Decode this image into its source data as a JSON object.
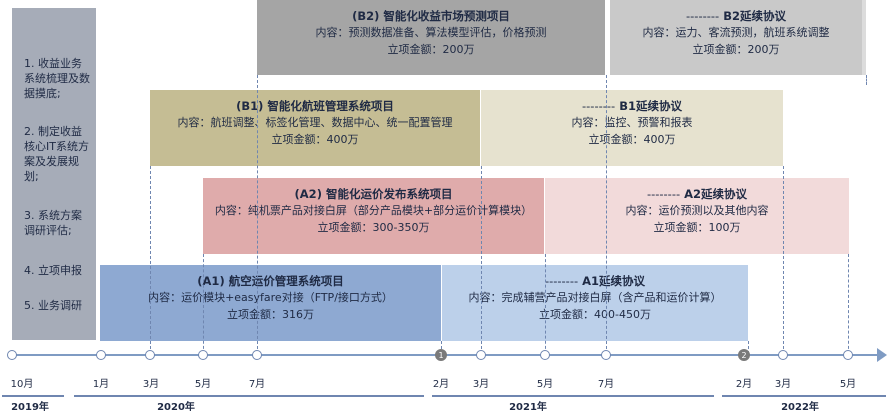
{
  "tasks": [
    "1. 收益业务系统梳理及数据摸底;",
    "2. 制定收益核心IT系统方案及发展规划;",
    "3. 系统方案调研评估;",
    "4. 立项申报",
    "5. 业务调研"
  ],
  "projects": {
    "b2": {
      "title": "(B2) 智能化收益市场预测项目",
      "content": "内容：预测数据准备、算法模型评估，价格预测",
      "amount": "立项金额：200万"
    },
    "b2x": {
      "title_dash": "--------",
      "title": "B2延续协议",
      "content": "内容：运力、客流预测，航班系统调整",
      "amount": "立项金额：200万"
    },
    "b1": {
      "title": "(B1) 智能化航班管理系统项目",
      "content": "内容：航班调整、标签化管理、数据中心、统一配置管理",
      "amount": "立项金额：400万"
    },
    "b1x": {
      "title_dash": "--------",
      "title": "B1延续协议",
      "content": "内容：监控、预警和报表",
      "amount": "立项金额：400万"
    },
    "a2": {
      "title": "(A2) 智能化运价发布系统项目",
      "content": "内容：纯机票产品对接白屏（部分产品模块+部分运价计算模块）",
      "amount": "立项金额：300-350万"
    },
    "a2x": {
      "title_dash": "--------",
      "title": "A2延续协议",
      "content": "内容：运价预测以及其他内容",
      "amount": "立项金额：100万"
    },
    "a1": {
      "title": "(A1) 航空运价管理系统项目",
      "content": "内容：运价模块+easyfare对接（FTP/接口方式）",
      "amount": "立项金额：316万"
    },
    "a1x": {
      "title_dash": "--------",
      "title": "A1延续协议",
      "content": "内容：完成辅营产品对接白屏（含产品和运价计算）",
      "amount": "立项金额：400-450万"
    }
  },
  "colors": {
    "left_panel": "#a6acb8",
    "b2": "#a5a5a5",
    "b2x": "#c9c9c9",
    "b1": "#c5bd94",
    "b1x": "#e6e2cf",
    "a2": "#dfabab",
    "a2x": "#f2dada",
    "a1": "#8ea9d2",
    "a1x": "#bcd0ea",
    "axis": "#7f9bc3"
  },
  "timeline": {
    "ticks": [
      "10月",
      "1月",
      "3月",
      "5月",
      "7月",
      "2月",
      "3月",
      "5月",
      "7月",
      "2月",
      "3月",
      "5月"
    ],
    "markers": [
      "1",
      "2"
    ],
    "years": [
      "2019年",
      "2020年",
      "2021年",
      "2022年"
    ]
  }
}
